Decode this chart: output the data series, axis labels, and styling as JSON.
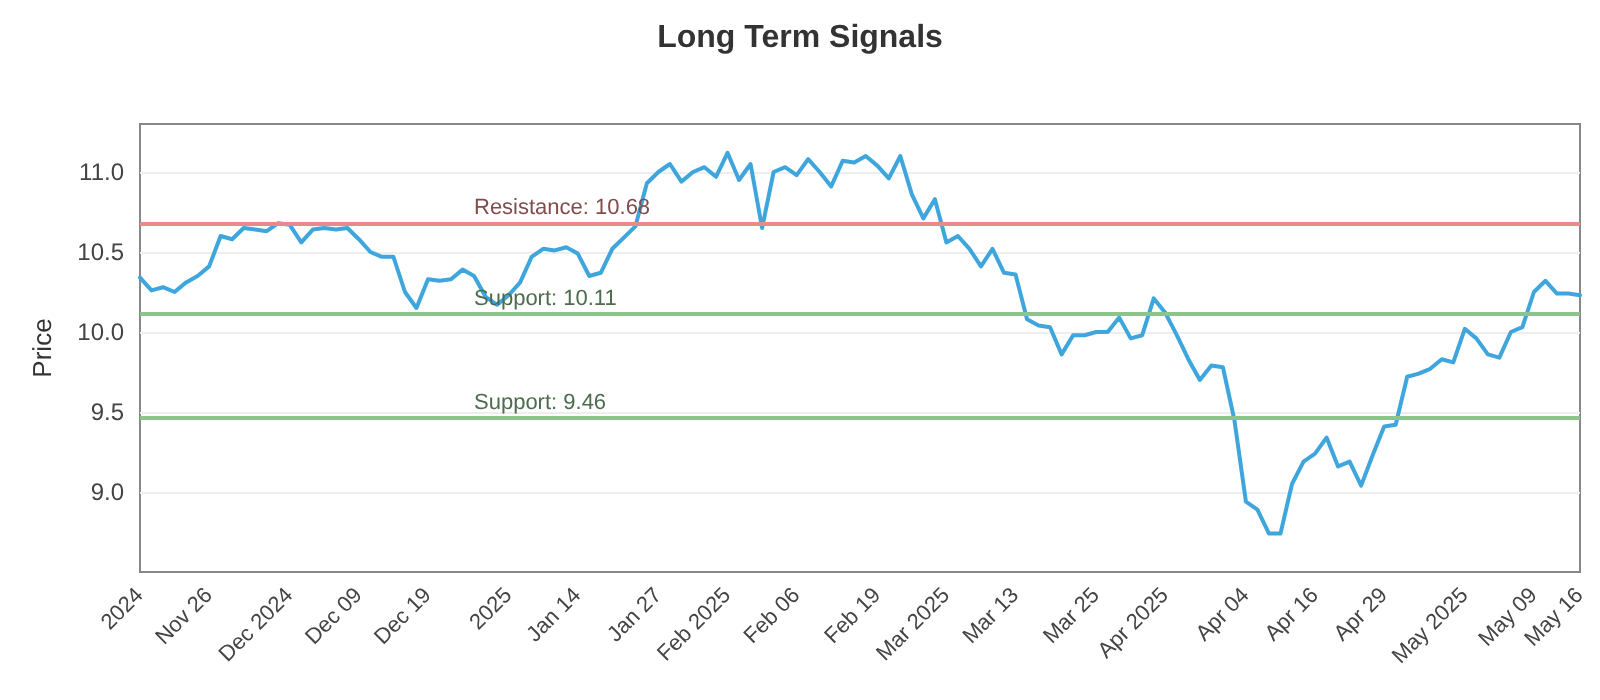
{
  "chart_data": {
    "type": "line",
    "title": "Long Term Signals",
    "ylabel": "Price",
    "categories": [
      "2024",
      null,
      null,
      null,
      null,
      null,
      "Nov 26",
      null,
      null,
      null,
      null,
      null,
      null,
      "Dec 2024",
      null,
      null,
      null,
      null,
      null,
      "Dec 09",
      null,
      null,
      null,
      null,
      null,
      "Dec 19",
      null,
      null,
      null,
      null,
      null,
      null,
      "2025",
      null,
      null,
      null,
      null,
      null,
      "Jan 14",
      null,
      null,
      null,
      null,
      null,
      null,
      "Jan 27",
      null,
      null,
      null,
      null,
      null,
      "Feb 2025",
      null,
      null,
      null,
      null,
      null,
      "Feb 06",
      null,
      null,
      null,
      null,
      null,
      null,
      "Feb 19",
      null,
      null,
      null,
      null,
      null,
      "Mar 2025",
      null,
      null,
      null,
      null,
      null,
      "Mar 13",
      null,
      null,
      null,
      null,
      null,
      null,
      "Mar 25",
      null,
      null,
      null,
      null,
      null,
      "Apr 2025",
      null,
      null,
      null,
      null,
      null,
      null,
      "Apr 04",
      null,
      null,
      null,
      null,
      null,
      "Apr 16",
      null,
      null,
      null,
      null,
      null,
      "Apr 29",
      null,
      null,
      null,
      null,
      null,
      null,
      "May 2025",
      null,
      null,
      null,
      null,
      null,
      "May 09",
      null,
      null,
      null,
      "May 16"
    ],
    "series": [
      {
        "color": "#3ea6dd",
        "values": [
          10.34,
          10.26,
          10.28,
          10.25,
          10.31,
          10.35,
          10.41,
          10.6,
          10.58,
          10.65,
          10.64,
          10.63,
          10.68,
          10.67,
          10.56,
          10.64,
          10.65,
          10.64,
          10.65,
          10.58,
          10.5,
          10.47,
          10.47,
          10.25,
          10.15,
          10.33,
          10.32,
          10.33,
          10.39,
          10.35,
          10.22,
          10.17,
          10.23,
          10.31,
          10.47,
          10.52,
          10.51,
          10.53,
          10.49,
          10.35,
          10.37,
          10.52,
          10.59,
          10.66,
          10.93,
          11.0,
          11.05,
          10.94,
          11.0,
          11.03,
          10.97,
          11.12,
          10.95,
          11.05,
          10.65,
          11.0,
          11.03,
          10.98,
          11.08,
          11.0,
          10.91,
          11.07,
          11.06,
          11.1,
          11.04,
          10.96,
          11.1,
          10.86,
          10.71,
          10.83,
          10.56,
          10.6,
          10.52,
          10.41,
          10.52,
          10.37,
          10.36,
          10.08,
          10.04,
          10.03,
          9.86,
          9.98,
          9.98,
          10.0,
          10.0,
          10.09,
          9.96,
          9.98,
          10.21,
          10.12,
          9.98,
          9.83,
          9.7,
          9.79,
          9.78,
          9.45,
          8.94,
          8.89,
          8.74,
          8.74,
          9.05,
          9.19,
          9.24,
          9.34,
          9.16,
          9.19,
          9.04,
          9.23,
          9.41,
          9.42,
          9.72,
          9.74,
          9.77,
          9.83,
          9.81,
          10.02,
          9.96,
          9.86,
          9.84,
          10.0,
          10.03,
          10.25,
          10.32,
          10.24,
          10.24,
          10.23
        ]
      }
    ],
    "ylim": [
      8.5,
      11.3
    ],
    "yticks": [
      {
        "value": 9,
        "label": "9.0"
      },
      9.5,
      {
        "value": 10,
        "label": "10.0"
      },
      10.5,
      {
        "value": 11,
        "label": "11.0"
      }
    ],
    "grid": "y",
    "marker": "none",
    "line_style": "solid",
    "ref_lines": [
      {
        "axis": "y",
        "value": 10.68,
        "label": "Resistance: 10.68",
        "color": "#e88a8a"
      },
      {
        "axis": "y",
        "value": 10.11,
        "label": "Support: 10.11",
        "color": "#8cc58c"
      },
      {
        "axis": "y",
        "value": 9.46,
        "label": "Support: 9.46",
        "color": "#8cc58c"
      }
    ]
  }
}
